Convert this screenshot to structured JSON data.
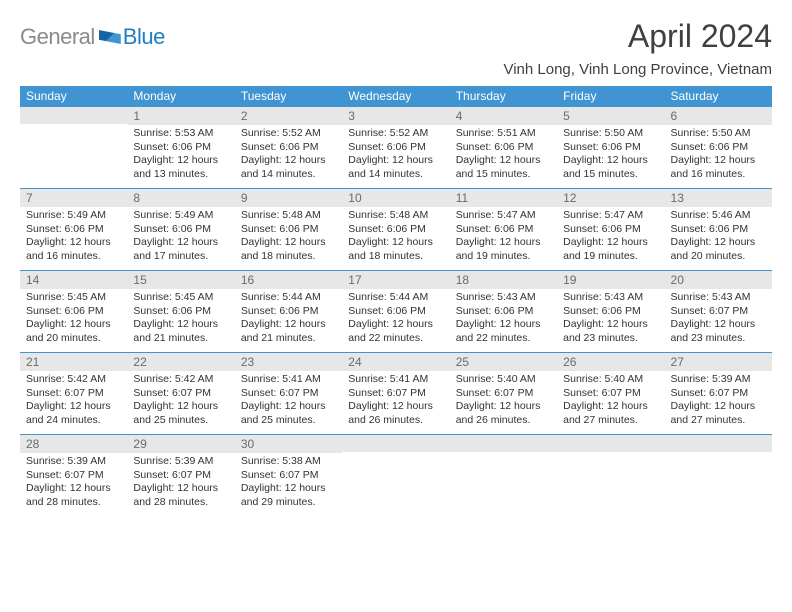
{
  "brand": {
    "part1": "General",
    "part2": "Blue"
  },
  "title": "April 2024",
  "location": "Vinh Long, Vinh Long Province, Vietnam",
  "colors": {
    "header_bg": "#3f94d1",
    "header_text": "#ffffff",
    "daynum_bg": "#e7e7e7",
    "daynum_text": "#6b6b6b",
    "border": "#3f94d1",
    "body_text": "#333333",
    "logo_gray": "#8a8a8a",
    "logo_blue": "#1f7fc1"
  },
  "dow": [
    "Sunday",
    "Monday",
    "Tuesday",
    "Wednesday",
    "Thursday",
    "Friday",
    "Saturday"
  ],
  "weeks": [
    [
      null,
      {
        "n": "1",
        "sr": "Sunrise: 5:53 AM",
        "ss": "Sunset: 6:06 PM",
        "dl": "Daylight: 12 hours and 13 minutes."
      },
      {
        "n": "2",
        "sr": "Sunrise: 5:52 AM",
        "ss": "Sunset: 6:06 PM",
        "dl": "Daylight: 12 hours and 14 minutes."
      },
      {
        "n": "3",
        "sr": "Sunrise: 5:52 AM",
        "ss": "Sunset: 6:06 PM",
        "dl": "Daylight: 12 hours and 14 minutes."
      },
      {
        "n": "4",
        "sr": "Sunrise: 5:51 AM",
        "ss": "Sunset: 6:06 PM",
        "dl": "Daylight: 12 hours and 15 minutes."
      },
      {
        "n": "5",
        "sr": "Sunrise: 5:50 AM",
        "ss": "Sunset: 6:06 PM",
        "dl": "Daylight: 12 hours and 15 minutes."
      },
      {
        "n": "6",
        "sr": "Sunrise: 5:50 AM",
        "ss": "Sunset: 6:06 PM",
        "dl": "Daylight: 12 hours and 16 minutes."
      }
    ],
    [
      {
        "n": "7",
        "sr": "Sunrise: 5:49 AM",
        "ss": "Sunset: 6:06 PM",
        "dl": "Daylight: 12 hours and 16 minutes."
      },
      {
        "n": "8",
        "sr": "Sunrise: 5:49 AM",
        "ss": "Sunset: 6:06 PM",
        "dl": "Daylight: 12 hours and 17 minutes."
      },
      {
        "n": "9",
        "sr": "Sunrise: 5:48 AM",
        "ss": "Sunset: 6:06 PM",
        "dl": "Daylight: 12 hours and 18 minutes."
      },
      {
        "n": "10",
        "sr": "Sunrise: 5:48 AM",
        "ss": "Sunset: 6:06 PM",
        "dl": "Daylight: 12 hours and 18 minutes."
      },
      {
        "n": "11",
        "sr": "Sunrise: 5:47 AM",
        "ss": "Sunset: 6:06 PM",
        "dl": "Daylight: 12 hours and 19 minutes."
      },
      {
        "n": "12",
        "sr": "Sunrise: 5:47 AM",
        "ss": "Sunset: 6:06 PM",
        "dl": "Daylight: 12 hours and 19 minutes."
      },
      {
        "n": "13",
        "sr": "Sunrise: 5:46 AM",
        "ss": "Sunset: 6:06 PM",
        "dl": "Daylight: 12 hours and 20 minutes."
      }
    ],
    [
      {
        "n": "14",
        "sr": "Sunrise: 5:45 AM",
        "ss": "Sunset: 6:06 PM",
        "dl": "Daylight: 12 hours and 20 minutes."
      },
      {
        "n": "15",
        "sr": "Sunrise: 5:45 AM",
        "ss": "Sunset: 6:06 PM",
        "dl": "Daylight: 12 hours and 21 minutes."
      },
      {
        "n": "16",
        "sr": "Sunrise: 5:44 AM",
        "ss": "Sunset: 6:06 PM",
        "dl": "Daylight: 12 hours and 21 minutes."
      },
      {
        "n": "17",
        "sr": "Sunrise: 5:44 AM",
        "ss": "Sunset: 6:06 PM",
        "dl": "Daylight: 12 hours and 22 minutes."
      },
      {
        "n": "18",
        "sr": "Sunrise: 5:43 AM",
        "ss": "Sunset: 6:06 PM",
        "dl": "Daylight: 12 hours and 22 minutes."
      },
      {
        "n": "19",
        "sr": "Sunrise: 5:43 AM",
        "ss": "Sunset: 6:06 PM",
        "dl": "Daylight: 12 hours and 23 minutes."
      },
      {
        "n": "20",
        "sr": "Sunrise: 5:43 AM",
        "ss": "Sunset: 6:07 PM",
        "dl": "Daylight: 12 hours and 23 minutes."
      }
    ],
    [
      {
        "n": "21",
        "sr": "Sunrise: 5:42 AM",
        "ss": "Sunset: 6:07 PM",
        "dl": "Daylight: 12 hours and 24 minutes."
      },
      {
        "n": "22",
        "sr": "Sunrise: 5:42 AM",
        "ss": "Sunset: 6:07 PM",
        "dl": "Daylight: 12 hours and 25 minutes."
      },
      {
        "n": "23",
        "sr": "Sunrise: 5:41 AM",
        "ss": "Sunset: 6:07 PM",
        "dl": "Daylight: 12 hours and 25 minutes."
      },
      {
        "n": "24",
        "sr": "Sunrise: 5:41 AM",
        "ss": "Sunset: 6:07 PM",
        "dl": "Daylight: 12 hours and 26 minutes."
      },
      {
        "n": "25",
        "sr": "Sunrise: 5:40 AM",
        "ss": "Sunset: 6:07 PM",
        "dl": "Daylight: 12 hours and 26 minutes."
      },
      {
        "n": "26",
        "sr": "Sunrise: 5:40 AM",
        "ss": "Sunset: 6:07 PM",
        "dl": "Daylight: 12 hours and 27 minutes."
      },
      {
        "n": "27",
        "sr": "Sunrise: 5:39 AM",
        "ss": "Sunset: 6:07 PM",
        "dl": "Daylight: 12 hours and 27 minutes."
      }
    ],
    [
      {
        "n": "28",
        "sr": "Sunrise: 5:39 AM",
        "ss": "Sunset: 6:07 PM",
        "dl": "Daylight: 12 hours and 28 minutes."
      },
      {
        "n": "29",
        "sr": "Sunrise: 5:39 AM",
        "ss": "Sunset: 6:07 PM",
        "dl": "Daylight: 12 hours and 28 minutes."
      },
      {
        "n": "30",
        "sr": "Sunrise: 5:38 AM",
        "ss": "Sunset: 6:07 PM",
        "dl": "Daylight: 12 hours and 29 minutes."
      },
      null,
      null,
      null,
      null
    ]
  ]
}
